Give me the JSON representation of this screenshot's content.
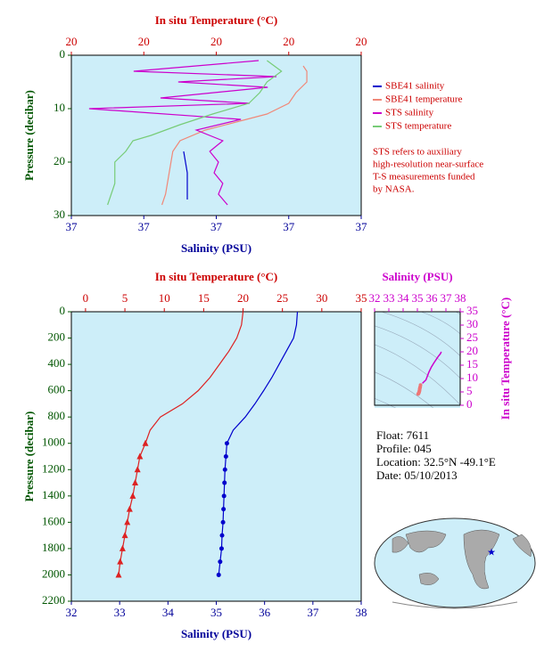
{
  "chart_data": [
    {
      "type": "line",
      "x2_label": "In situ Temperature (°C)",
      "x_label": "Salinity (PSU)",
      "y_label": "Pressure (decibar)",
      "xlim": [
        36.6,
        37.4
      ],
      "xticks": [
        {
          "value": 36.6,
          "label": "37"
        },
        {
          "value": 36.8,
          "label": "37"
        },
        {
          "value": 37.0,
          "label": "37"
        },
        {
          "value": 37.2,
          "label": "37"
        },
        {
          "value": 37.4,
          "label": "37"
        }
      ],
      "x2lim": [
        19.6,
        20.4
      ],
      "x2ticks": [
        {
          "value": 19.6,
          "label": "20"
        },
        {
          "value": 19.8,
          "label": "20"
        },
        {
          "value": 20.0,
          "label": "20"
        },
        {
          "value": 20.2,
          "label": "20"
        },
        {
          "value": 20.4,
          "label": "20"
        }
      ],
      "ylim": [
        0,
        30
      ],
      "yticks": [
        0,
        10,
        20,
        30
      ],
      "y_inverted": true,
      "series": [
        {
          "name": "SBE41 salinity",
          "color": "#0000cc",
          "axis": "x",
          "values": [
            36.91,
            36.92,
            36.92
          ],
          "pressure": [
            18,
            22,
            27
          ]
        },
        {
          "name": "SBE41 temperature",
          "color": "#f08878",
          "axis": "x2",
          "values": [
            20.24,
            20.25,
            20.25,
            20.22,
            20.2,
            20.14,
            19.97,
            19.9,
            19.88,
            19.87,
            19.86,
            19.85
          ],
          "pressure": [
            2,
            3,
            5,
            7,
            9,
            11,
            14,
            16,
            18,
            22,
            26,
            28
          ]
        },
        {
          "name": "STS salinity",
          "color": "#cc00cc",
          "axis": "x",
          "values": [
            37.117,
            36.772,
            37.166,
            36.895,
            37.142,
            36.846,
            37.092,
            36.649,
            37.068,
            36.945,
            37.018,
            36.982,
            37.006,
            36.994,
            37.018,
            37.006,
            37.031
          ],
          "pressure": [
            1,
            3,
            4,
            5,
            6,
            8,
            9,
            10,
            12,
            14,
            16,
            18,
            20,
            22,
            24,
            26,
            28
          ]
        },
        {
          "name": "STS temperature",
          "color": "#77cc77",
          "axis": "x2",
          "values": [
            20.14,
            20.18,
            20.14,
            20.12,
            20.09,
            19.99,
            19.9,
            19.82,
            19.77,
            19.75,
            19.72,
            19.72,
            19.7
          ],
          "pressure": [
            1,
            3,
            5,
            7,
            9,
            11,
            13,
            15,
            16,
            18,
            20,
            24,
            28
          ]
        }
      ],
      "note": [
        "STS refers to auxiliary",
        "high-resolution near-surface",
        "T-S measurements funded",
        "by NASA."
      ]
    },
    {
      "type": "profile",
      "x2_label": "In situ Temperature (°C)",
      "x_label": "Salinity (PSU)",
      "y_label": "Pressure (decibar)",
      "xlim": [
        32,
        38
      ],
      "xticks": [
        32,
        33,
        34,
        35,
        36,
        37,
        38
      ],
      "x2lim": [
        -1.8,
        35
      ],
      "x2ticks": [
        0,
        5,
        10,
        15,
        20,
        25,
        30,
        35
      ],
      "ylim": [
        0,
        2200
      ],
      "yticks": [
        0,
        200,
        400,
        600,
        800,
        1000,
        1200,
        1400,
        1600,
        1800,
        2000,
        2200
      ],
      "y_inverted": true,
      "marker_start": 1000,
      "series": [
        {
          "color": "#0000cc",
          "axis": "x",
          "marker": "circle",
          "values": [
            36.68,
            36.66,
            36.6,
            36.45,
            36.3,
            36.15,
            35.98,
            35.8,
            35.6,
            35.35,
            35.22,
            35.2,
            35.18,
            35.17,
            35.16,
            35.15,
            35.14,
            35.12,
            35.11,
            35.08,
            35.05
          ],
          "pressure": [
            0,
            100,
            200,
            300,
            400,
            500,
            600,
            700,
            800,
            900,
            1000,
            1100,
            1200,
            1300,
            1400,
            1500,
            1600,
            1700,
            1800,
            1900,
            2000
          ]
        },
        {
          "color": "#dd2222",
          "axis": "x2",
          "marker": "triangle",
          "values": [
            20,
            19.8,
            19.2,
            18.2,
            17,
            15.8,
            14.3,
            12.3,
            9.5,
            8.2,
            7.6,
            6.9,
            6.6,
            6.3,
            6,
            5.6,
            5.3,
            5,
            4.7,
            4.4,
            4.2
          ],
          "pressure": [
            0,
            100,
            200,
            300,
            400,
            500,
            600,
            700,
            800,
            900,
            1000,
            1100,
            1200,
            1300,
            1400,
            1500,
            1600,
            1700,
            1800,
            1900,
            2000
          ]
        }
      ]
    },
    {
      "type": "ts",
      "x_label": "Salinity (PSU)",
      "y_label": "In situ Temperature (°C)",
      "xlim": [
        32,
        38
      ],
      "xticks": [
        32,
        33,
        34,
        35,
        36,
        37,
        38
      ],
      "ylim": [
        0,
        35
      ],
      "yticks": [
        0,
        5,
        10,
        15,
        20,
        25,
        30,
        35
      ],
      "color": "#cc00cc",
      "marker_color": "#ee7777"
    }
  ],
  "info": [
    "Float:  7611",
    "Profile:  045",
    "Location:  32.5°N  -49.1°E",
    "Date:  05/10/2013"
  ]
}
